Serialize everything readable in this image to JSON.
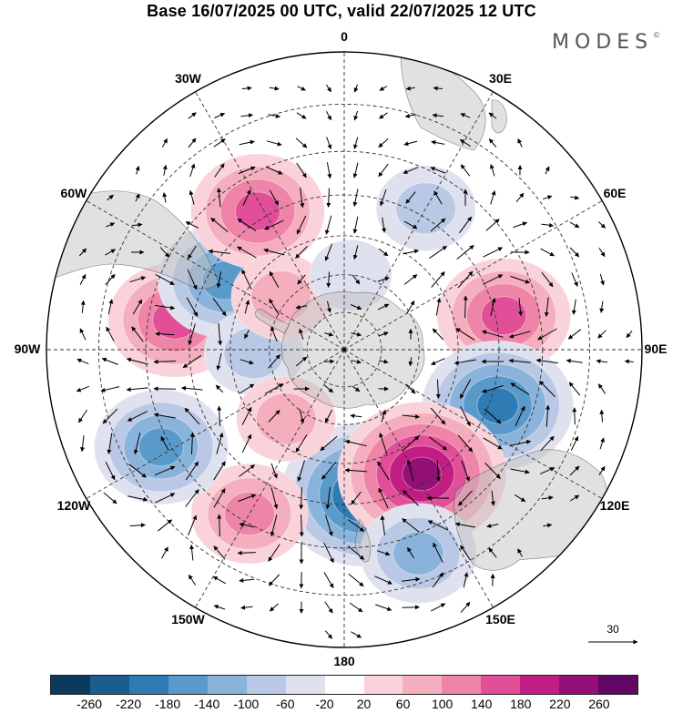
{
  "title": "Base 16/07/2025 00 UTC, valid 22/07/2025 12 UTC",
  "brand": "MODES",
  "brand_mark": "©",
  "longitude_labels": [
    {
      "text": "0",
      "lon": 0
    },
    {
      "text": "30E",
      "lon": 30
    },
    {
      "text": "60E",
      "lon": 60
    },
    {
      "text": "90E",
      "lon": 90
    },
    {
      "text": "120E",
      "lon": 120
    },
    {
      "text": "150E",
      "lon": 150
    },
    {
      "text": "180",
      "lon": 180
    },
    {
      "text": "150W",
      "lon": -150
    },
    {
      "text": "120W",
      "lon": -120
    },
    {
      "text": "90W",
      "lon": -90
    },
    {
      "text": "60W",
      "lon": -60
    },
    {
      "text": "30W",
      "lon": -30
    }
  ],
  "reference_vector": {
    "label": "30"
  },
  "colorbar": {
    "labels": [
      "-260",
      "-220",
      "-180",
      "-140",
      "-100",
      "-60",
      "-20",
      "20",
      "60",
      "100",
      "140",
      "180",
      "220",
      "260"
    ],
    "colors": [
      "#0c3a5c",
      "#1b5e8e",
      "#2f7bb4",
      "#5a9acb",
      "#89b3db",
      "#b9c9e5",
      "#dfe1ef",
      "#ffffff",
      "#f9d3d9",
      "#f4aebd",
      "#ee84a7",
      "#e04f98",
      "#c01e84",
      "#941076",
      "#600765"
    ]
  },
  "projection": "south-polar-stereographic",
  "anomalies": [
    {
      "lon": 172,
      "lat_deg": -52,
      "value": -230
    },
    {
      "lon": -150,
      "lat_deg": -42,
      "value": 130
    },
    {
      "lon": -118,
      "lat_deg": -38,
      "value": -170
    },
    {
      "lon": -80,
      "lat_deg": -46,
      "value": 170
    },
    {
      "lon": -60,
      "lat_deg": -54,
      "value": -170
    },
    {
      "lon": -32,
      "lat_deg": -48,
      "value": 140
    },
    {
      "lon": 30,
      "lat_deg": -48,
      "value": -90
    },
    {
      "lon": 78,
      "lat_deg": -48,
      "value": 160
    },
    {
      "lon": 110,
      "lat_deg": -48,
      "value": -210
    },
    {
      "lon": 148,
      "lat_deg": -52,
      "value": 250
    },
    {
      "lon": 160,
      "lat_deg": -36,
      "value": -110
    },
    {
      "lon": -92,
      "lat_deg": -66,
      "value": -80
    },
    {
      "lon": -140,
      "lat_deg": -66,
      "value": 80
    },
    {
      "lon": -50,
      "lat_deg": -68,
      "value": 70
    },
    {
      "lon": 5,
      "lat_deg": -70,
      "value": -40
    }
  ]
}
